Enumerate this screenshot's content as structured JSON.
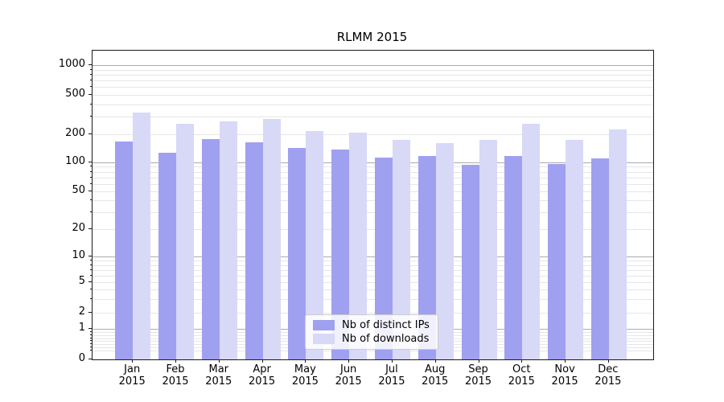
{
  "chart_data": {
    "type": "bar",
    "title": "RLMM 2015",
    "categories": [
      "Jan",
      "Feb",
      "Mar",
      "Apr",
      "May",
      "Jun",
      "Jul",
      "Aug",
      "Sep",
      "Oct",
      "Nov",
      "Dec"
    ],
    "year_label": "2015",
    "series": [
      {
        "name": "Nb of distinct IPs",
        "color": "#a0a0f0",
        "values": [
          165,
          126,
          177,
          163,
          143,
          138,
          113,
          118,
          95,
          117,
          97,
          111
        ]
      },
      {
        "name": "Nb of downloads",
        "color": "#d8d8f7",
        "values": [
          330,
          255,
          270,
          285,
          213,
          206,
          173,
          160,
          173,
          251,
          173,
          220
        ]
      }
    ],
    "y_ticks": [
      0,
      1,
      2,
      5,
      10,
      20,
      50,
      100,
      200,
      500,
      1000
    ],
    "y_scale": "symlog",
    "ylim": [
      0,
      1400
    ],
    "xlabel": "",
    "ylabel": "",
    "grid": true,
    "legend_position": "lower center"
  },
  "colors": {
    "major_gridline": "#ababab",
    "minor_gridline": "#e6e6e6",
    "axis": "#1a1a1a",
    "background": "#ffffff"
  }
}
